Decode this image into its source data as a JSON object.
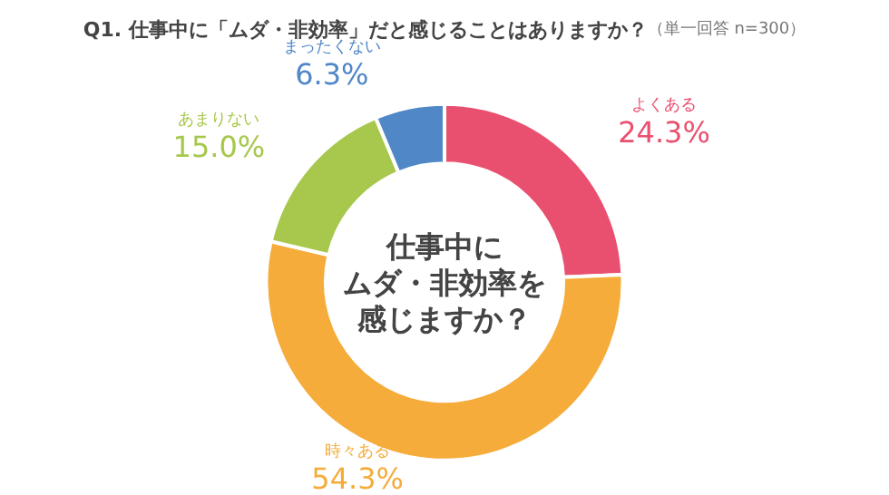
{
  "chart_data": {
    "type": "donut",
    "title": "Q1. 仕事中に「ムダ・非効率」だと感じることはありますか？",
    "subtitle": "（単一回答 n=300）",
    "categories": [
      "よくある",
      "時々ある",
      "あまりない",
      "まったくない"
    ],
    "values": [
      24.3,
      54.3,
      15.0,
      6.3
    ],
    "value_labels": [
      "24.3%",
      "54.3%",
      "15.0%",
      "6.3%"
    ],
    "colors": [
      "#e9506f",
      "#f5ac3a",
      "#a7c84c",
      "#4f87c7"
    ],
    "annotations": [
      "仕事中に",
      "ムダ・非効率を",
      "感じますか？"
    ],
    "legend": false
  }
}
